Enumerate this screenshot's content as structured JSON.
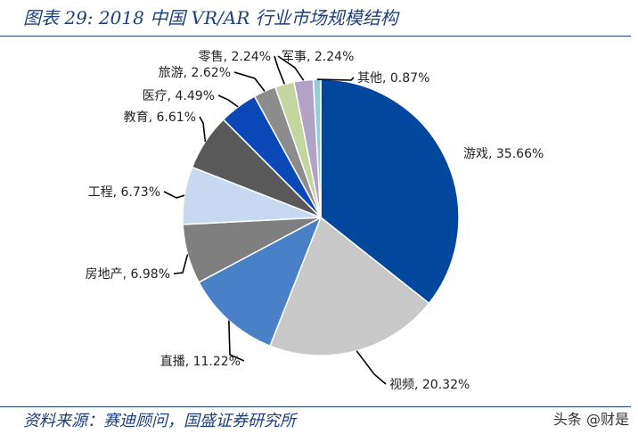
{
  "title": "图表 29:  2018 中国 VR/AR 行业市场规模结构",
  "source": "资料来源：赛迪顾问，国盛证券研究所",
  "watermark": "头条 @财是",
  "chart_data": {
    "type": "pie",
    "title": "2018 中国 VR/AR 行业市场规模结构",
    "slices": [
      {
        "label": "游戏",
        "value": 35.66,
        "text": "游戏, 35.66%",
        "color": "#00479d"
      },
      {
        "label": "视频",
        "value": 20.32,
        "text": "视频, 20.32%",
        "color": "#c8c8c8"
      },
      {
        "label": "直播",
        "value": 11.22,
        "text": "直播, 11.22%",
        "color": "#4a80c8"
      },
      {
        "label": "房地产",
        "value": 6.98,
        "text": "房地产, 6.98%",
        "color": "#7f7f7f"
      },
      {
        "label": "工程",
        "value": 6.73,
        "text": "工程, 6.73%",
        "color": "#c6d9f0"
      },
      {
        "label": "教育",
        "value": 6.61,
        "text": "教育, 6.61%",
        "color": "#595959"
      },
      {
        "label": "医疗",
        "value": 4.49,
        "text": "医疗, 4.49%",
        "color": "#0a48b8"
      },
      {
        "label": "旅游",
        "value": 2.62,
        "text": "旅游, 2.62%",
        "color": "#8c8c8c"
      },
      {
        "label": "零售",
        "value": 2.24,
        "text": "零售, 2.24%",
        "color": "#c4d6a0"
      },
      {
        "label": "军事",
        "value": 2.24,
        "text": "军事, 2.24%",
        "color": "#b3a2c7"
      },
      {
        "label": "其他",
        "value": 0.87,
        "text": "其他, 0.87%",
        "color": "#92cddc"
      }
    ],
    "start": "12 o'clock",
    "direction": "clockwise",
    "legend": "none"
  }
}
